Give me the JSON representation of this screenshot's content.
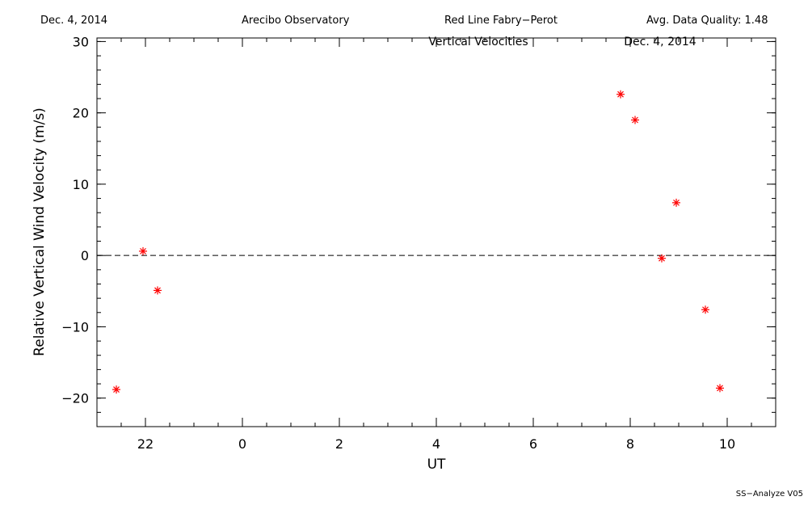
{
  "header": {
    "date": "Dec. 4, 2014",
    "observatory": "Arecibo Observatory",
    "instrument": "Red Line Fabry−Perot",
    "quality": "Avg. Data Quality: 1.48"
  },
  "footer": "SS−Analyze V05",
  "chart_data": {
    "type": "scatter",
    "title": "Vertical Velocities",
    "subtitle": "Dec. 4, 2014",
    "xlabel": "UT",
    "ylabel": "Relative Vertical Wind Velocity (m/s)",
    "xlim": [
      21.0,
      35.0
    ],
    "ylim": [
      -24,
      30.5
    ],
    "xtick_values": [
      22,
      24,
      26,
      28,
      30,
      32,
      34
    ],
    "xtick_labels": [
      "22",
      "0",
      "2",
      "4",
      "6",
      "8",
      "10"
    ],
    "ytick_values": [
      -20,
      -10,
      0,
      10,
      20,
      30
    ],
    "ytick_labels": [
      "−20",
      "−10",
      "0",
      "10",
      "20",
      "30"
    ],
    "reference_line_y": 0,
    "marker_color": "#ff0000",
    "series": [
      {
        "x": [
          21.4,
          21.95,
          22.25,
          31.8,
          32.1,
          32.65,
          32.95,
          33.55,
          33.85
        ],
        "y": [
          -18.8,
          0.6,
          -4.9,
          22.6,
          19.0,
          -0.4,
          7.4,
          -7.6,
          -18.6
        ]
      }
    ]
  }
}
